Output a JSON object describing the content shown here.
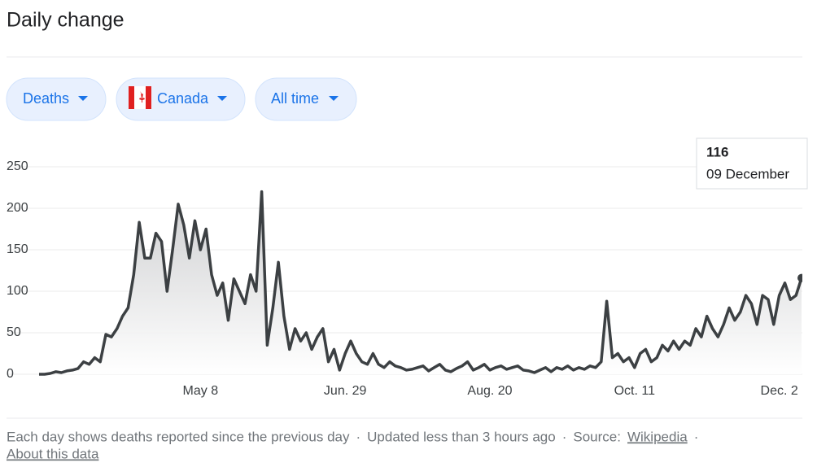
{
  "header": {
    "title": "Daily change"
  },
  "filters": [
    "Deaths",
    "Canada",
    "All time"
  ],
  "chart_data": {
    "type": "line",
    "color": "#3c4043",
    "grid": true,
    "categories": [
      null,
      null,
      null,
      null,
      null,
      null,
      null,
      null,
      null,
      null,
      null,
      null,
      null,
      null,
      null,
      null,
      null,
      null,
      null,
      null,
      null,
      null,
      null,
      null,
      null,
      null,
      null,
      null,
      null,
      "May 8",
      null,
      null,
      null,
      null,
      null,
      null,
      null,
      null,
      null,
      null,
      null,
      null,
      null,
      null,
      null,
      null,
      null,
      null,
      null,
      null,
      null,
      null,
      null,
      null,
      null,
      "Jun. 29",
      null,
      null,
      null,
      null,
      null,
      null,
      null,
      null,
      null,
      null,
      null,
      null,
      null,
      null,
      null,
      null,
      null,
      null,
      null,
      null,
      null,
      null,
      null,
      null,
      null,
      "Aug. 20",
      null,
      null,
      null,
      null,
      null,
      null,
      null,
      null,
      null,
      null,
      null,
      null,
      null,
      null,
      null,
      null,
      null,
      null,
      null,
      null,
      null,
      null,
      null,
      null,
      null,
      "Oct. 11",
      null,
      null,
      null,
      null,
      null,
      null,
      null,
      null,
      null,
      null,
      null,
      null,
      null,
      null,
      null,
      null,
      null,
      null,
      null,
      null,
      null,
      null,
      null,
      null,
      null,
      "Dec. 2",
      null,
      null,
      null,
      null
    ],
    "values": [
      0,
      0,
      1,
      3,
      2,
      4,
      5,
      7,
      15,
      12,
      20,
      15,
      48,
      45,
      55,
      70,
      80,
      120,
      183,
      140,
      140,
      170,
      160,
      100,
      150,
      205,
      180,
      140,
      185,
      150,
      175,
      120,
      95,
      110,
      65,
      115,
      100,
      85,
      120,
      100,
      220,
      35,
      80,
      135,
      70,
      30,
      55,
      40,
      50,
      30,
      45,
      55,
      15,
      30,
      5,
      25,
      40,
      25,
      15,
      12,
      25,
      12,
      8,
      15,
      10,
      8,
      5,
      6,
      8,
      10,
      4,
      8,
      12,
      5,
      3,
      7,
      10,
      15,
      5,
      8,
      12,
      5,
      8,
      10,
      6,
      8,
      10,
      5,
      4,
      2,
      5,
      8,
      3,
      8,
      6,
      10,
      5,
      8,
      6,
      10,
      8,
      15,
      88,
      20,
      25,
      15,
      20,
      8,
      25,
      30,
      15,
      20,
      35,
      28,
      40,
      30,
      40,
      35,
      55,
      45,
      70,
      55,
      45,
      60,
      80,
      65,
      75,
      95,
      85,
      60,
      95,
      90,
      60,
      95,
      110,
      90,
      95,
      116
    ],
    "ylim": [
      0,
      250
    ],
    "yticks": [
      0,
      50,
      100,
      150,
      200,
      250
    ]
  },
  "tooltip": {
    "value": 116,
    "date": "09 December"
  },
  "footer": {
    "note": "Each day shows deaths reported since the previous day",
    "separator": "·",
    "updated": "Updated less than 3 hours ago",
    "source_label": "Source:",
    "source": "Wikipedia",
    "about": "About this data"
  }
}
